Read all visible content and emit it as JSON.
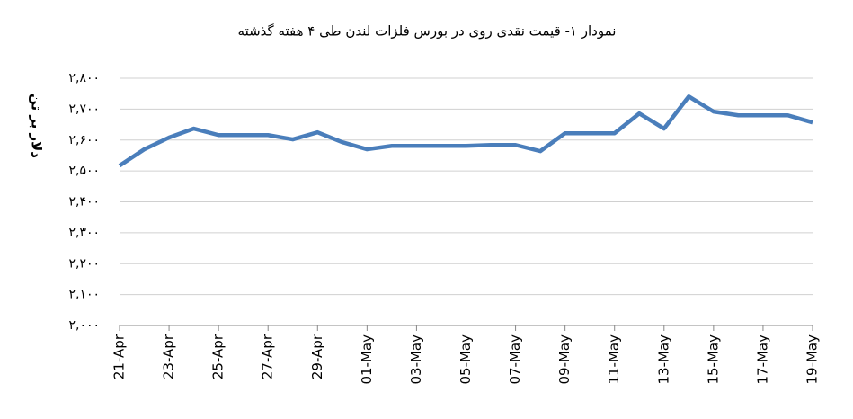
{
  "chart_data": {
    "type": "line",
    "title": "نمودار ۱- قیمت نقدی روی  در بورس فلزات لندن طی ۴ هفته گذشته",
    "y_label": "دلار بر تن",
    "categories": [
      "21-Apr",
      null,
      "23-Apr",
      null,
      "25-Apr",
      null,
      "27-Apr",
      null,
      "29-Apr",
      null,
      "01-May",
      null,
      "03-May",
      null,
      "05-May",
      null,
      "07-May",
      null,
      "09-May",
      null,
      "11-May",
      null,
      "13-May",
      null,
      "15-May",
      null,
      "17-May",
      null,
      "19-May"
    ],
    "series": [
      {
        "name": "روی",
        "color": "#4a7ebb",
        "values": [
          2517,
          2570,
          2608,
          2637,
          2616,
          2616,
          2616,
          2602,
          2625,
          2593,
          2570,
          2581,
          2581,
          2581,
          2581,
          2584,
          2584,
          2564,
          2622,
          2622,
          2622,
          2686,
          2637,
          2741,
          2692,
          2680,
          2680,
          2680,
          2657
        ]
      }
    ],
    "ylim": [
      2000,
      2800
    ],
    "yticks": [
      {
        "value": 2000,
        "label": "۲,۰۰۰"
      },
      {
        "value": 2100,
        "label": "۲,۱۰۰"
      },
      {
        "value": 2200,
        "label": "۲,۲۰۰"
      },
      {
        "value": 2300,
        "label": "۲,۳۰۰"
      },
      {
        "value": 2400,
        "label": "۲,۴۰۰"
      },
      {
        "value": 2500,
        "label": "۲,۵۰۰"
      },
      {
        "value": 2600,
        "label": "۲,۶۰۰"
      },
      {
        "value": 2700,
        "label": "۲,۷۰۰"
      },
      {
        "value": 2800,
        "label": "۲,۸۰۰"
      }
    ],
    "grid": true
  }
}
